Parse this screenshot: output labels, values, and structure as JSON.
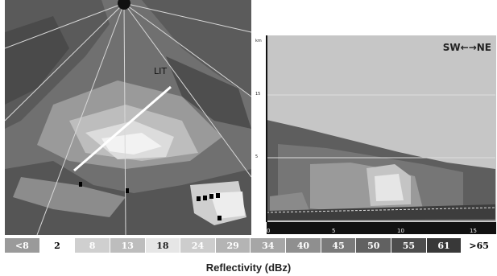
{
  "ppi": {
    "station_label": "LIT"
  },
  "cross_section": {
    "direction_label": "SW←→NE",
    "y_axis": {
      "unit": "km",
      "ticks": [
        "15",
        "5"
      ]
    },
    "x_axis": {
      "ticks": [
        "0",
        "5",
        "10",
        "15"
      ]
    }
  },
  "scale": {
    "title": "Reflectivity (dBz)",
    "bins": [
      {
        "label": "<8",
        "bg": "#9a9a9a",
        "fg": "#ffffff"
      },
      {
        "label": "2",
        "bg": "#ffffff",
        "fg": "#000000"
      },
      {
        "label": "8",
        "bg": "#cfcfcf",
        "fg": "#ffffff"
      },
      {
        "label": "13",
        "bg": "#bdbdbd",
        "fg": "#ffffff"
      },
      {
        "label": "18",
        "bg": "#e6e6e6",
        "fg": "#222222"
      },
      {
        "label": "24",
        "bg": "#cdcdcd",
        "fg": "#ffffff"
      },
      {
        "label": "29",
        "bg": "#b4b4b4",
        "fg": "#ffffff"
      },
      {
        "label": "34",
        "bg": "#a6a6a6",
        "fg": "#ffffff"
      },
      {
        "label": "40",
        "bg": "#8f8f8f",
        "fg": "#ffffff"
      },
      {
        "label": "45",
        "bg": "#7a7a7a",
        "fg": "#ffffff"
      },
      {
        "label": "50",
        "bg": "#616161",
        "fg": "#ffffff"
      },
      {
        "label": "55",
        "bg": "#4d4d4d",
        "fg": "#ffffff"
      },
      {
        "label": "61",
        "bg": "#383838",
        "fg": "#ffffff"
      },
      {
        "label": ">65",
        "bg": "#ffffff",
        "fg": "#000000"
      }
    ]
  }
}
